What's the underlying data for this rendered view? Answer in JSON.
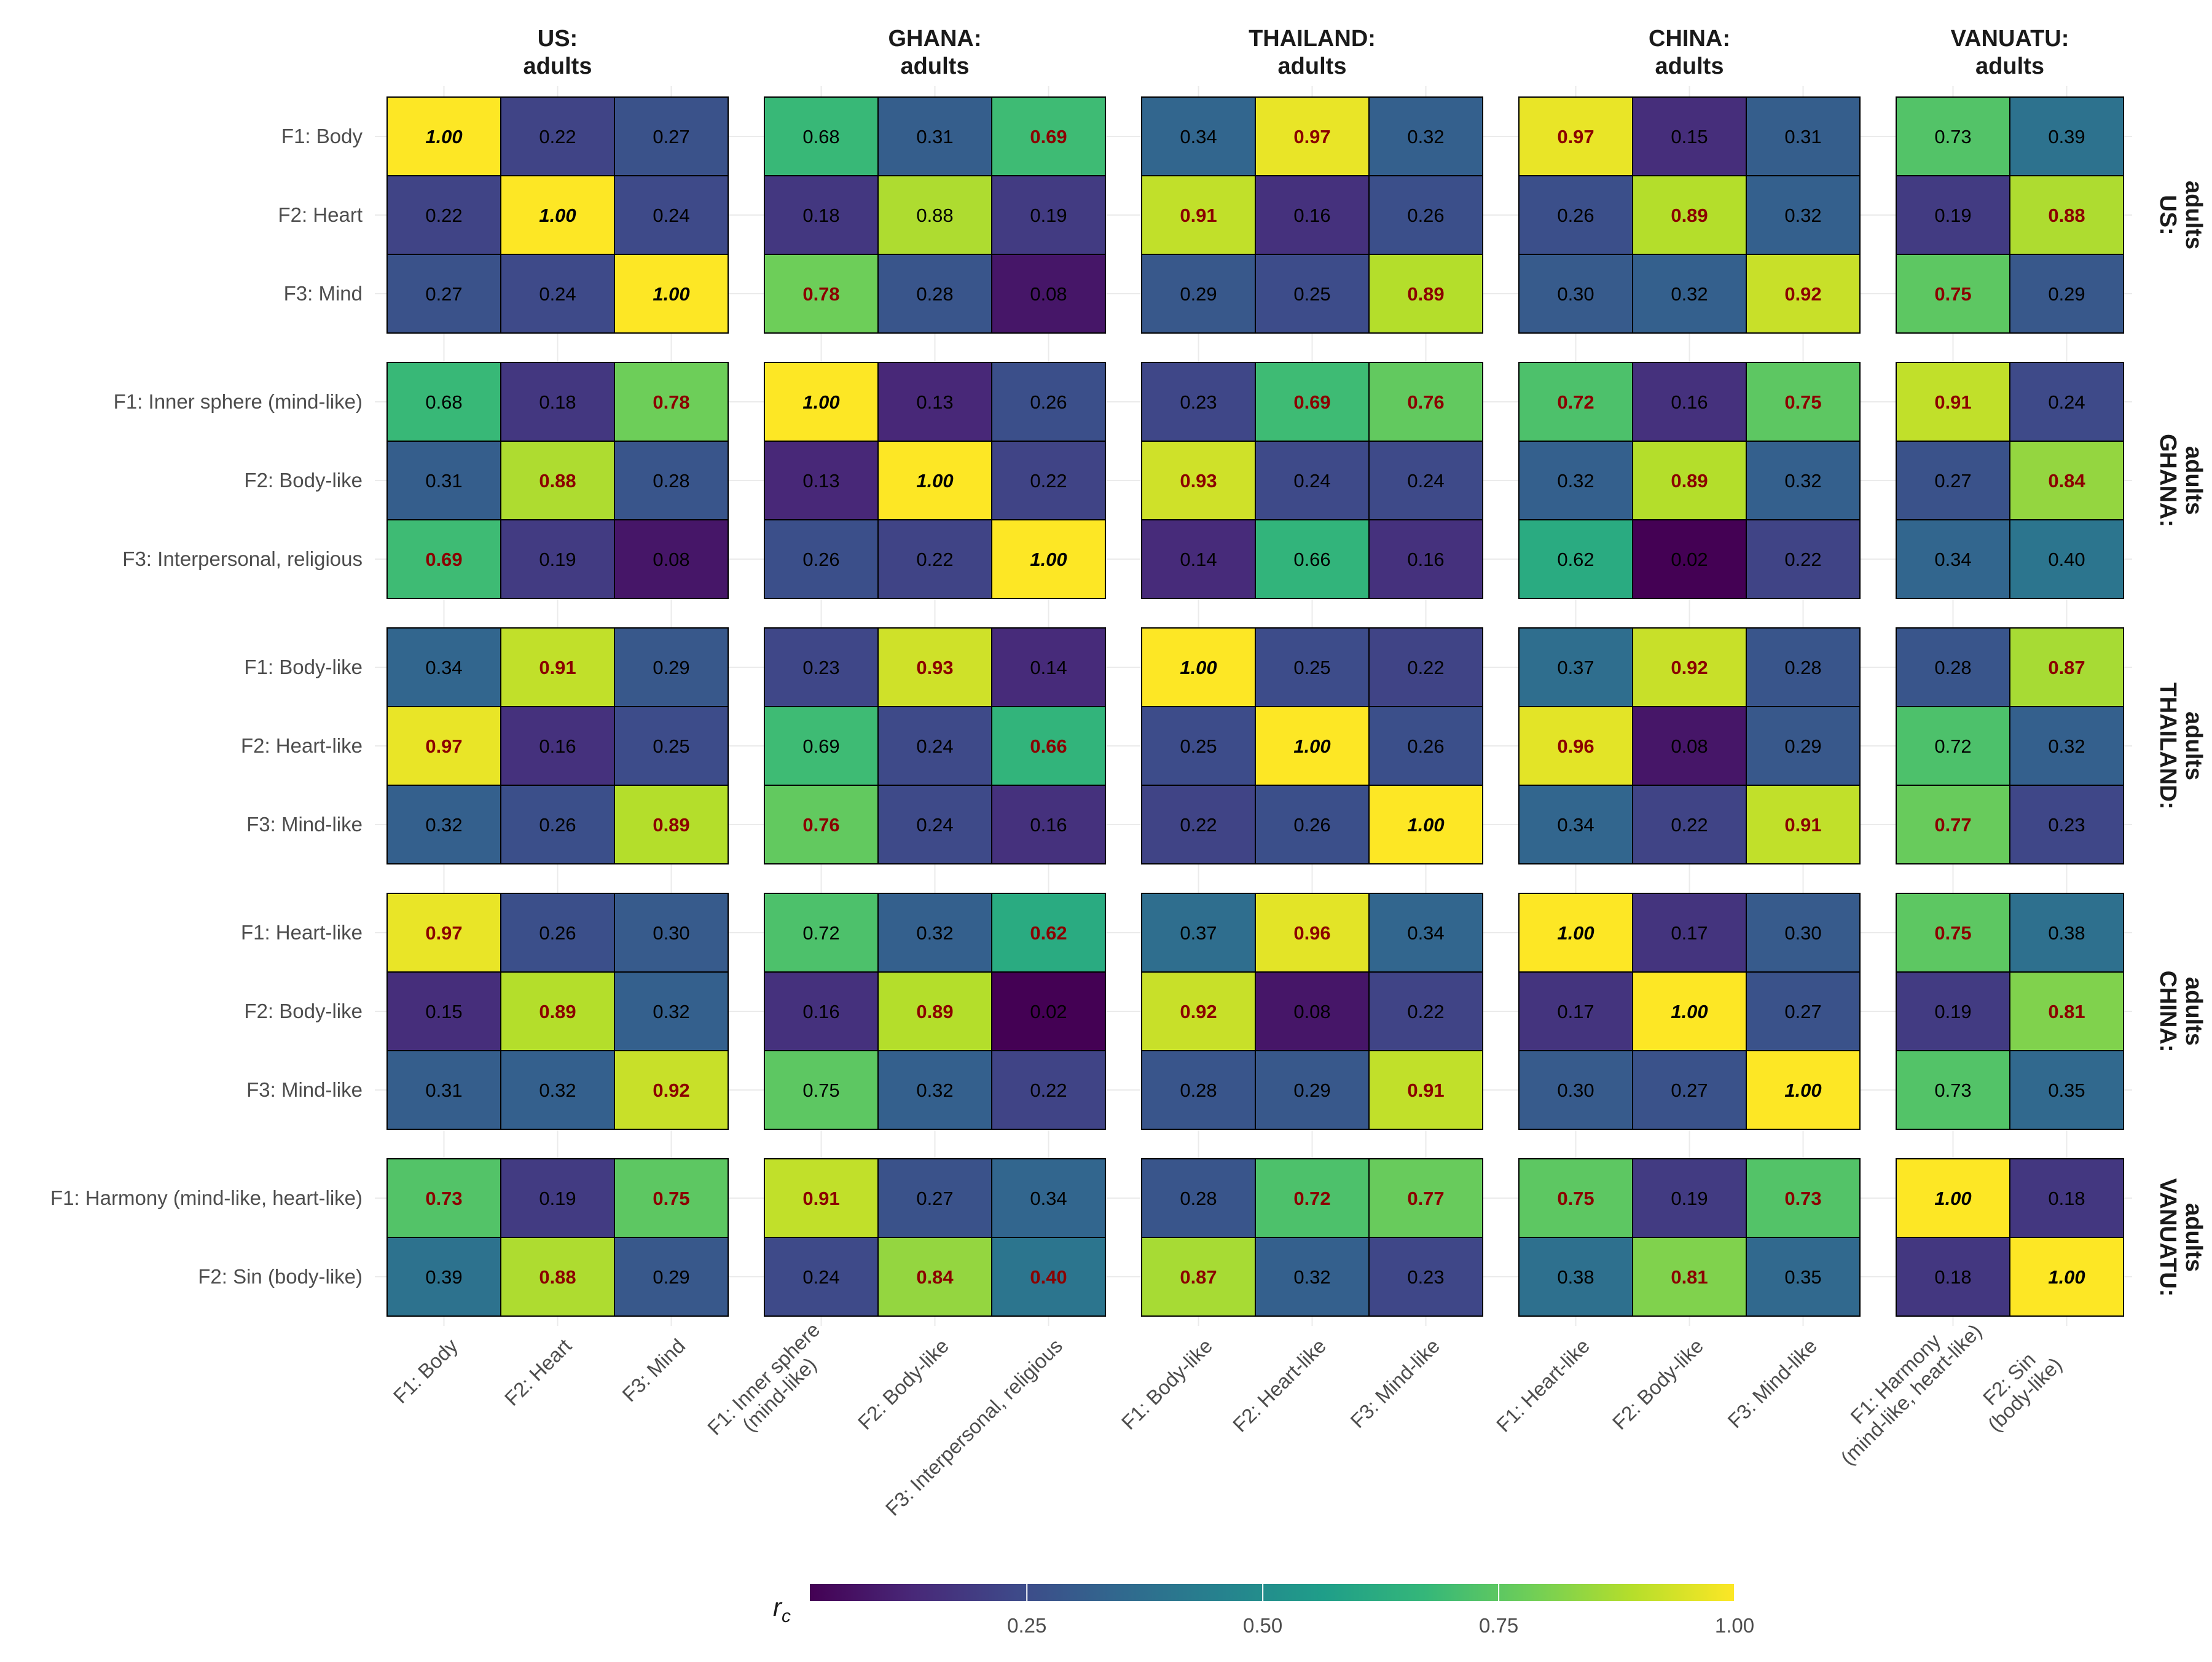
{
  "chart_data": {
    "type": "heatmap",
    "legend": {
      "title": "r",
      "title_subscript": "c",
      "ticks": [
        "0.25",
        "0.50",
        "0.75",
        "1.00"
      ],
      "tick_values": [
        0.25,
        0.5,
        0.75,
        1.0
      ],
      "range": [
        0.02,
        1.0
      ],
      "placement": "bottom"
    },
    "colorscale": [
      "#440154",
      "#482878",
      "#3e4989",
      "#31688e",
      "#26828e",
      "#1f9e89",
      "#35b779",
      "#6ece58",
      "#b5de2b",
      "#fde725"
    ],
    "highlight_colors": {
      "bold": "#8b0000",
      "diagonal": "#000000",
      "normal": "#000000"
    },
    "groups": [
      {
        "title_line1": "US:",
        "title_line2": "adults",
        "factors": [
          "F1: Body",
          "F2: Heart",
          "F3: Mind"
        ],
        "x_tick_labels": [
          [
            "F1: Body"
          ],
          [
            "F2: Heart"
          ],
          [
            "F3: Mind"
          ]
        ]
      },
      {
        "title_line1": "GHANA:",
        "title_line2": "adults",
        "factors": [
          "F1: Inner sphere (mind-like)",
          "F2: Body-like",
          "F3: Interpersonal, religious"
        ],
        "x_tick_labels": [
          [
            "F1: Inner sphere",
            "(mind-like)"
          ],
          [
            "F2: Body-like"
          ],
          [
            "F3: Interpersonal, religious"
          ]
        ]
      },
      {
        "title_line1": "THAILAND:",
        "title_line2": "adults",
        "factors": [
          "F1: Body-like",
          "F2: Heart-like",
          "F3: Mind-like"
        ],
        "x_tick_labels": [
          [
            "F1: Body-like"
          ],
          [
            "F2: Heart-like"
          ],
          [
            "F3: Mind-like"
          ]
        ]
      },
      {
        "title_line1": "CHINA:",
        "title_line2": "adults",
        "factors": [
          "F1: Heart-like",
          "F2: Body-like",
          "F3: Mind-like"
        ],
        "x_tick_labels": [
          [
            "F1: Heart-like"
          ],
          [
            "F2: Body-like"
          ],
          [
            "F3: Mind-like"
          ]
        ]
      },
      {
        "title_line1": "VANUATU:",
        "title_line2": "adults",
        "factors": [
          "F1: Harmony (mind-like, heart-like)",
          "F2: Sin (body-like)"
        ],
        "x_tick_labels": [
          [
            "F1: Harmony",
            "(mind-like, heart-like)"
          ],
          [
            "F2: Sin",
            "(body-like)"
          ]
        ]
      }
    ],
    "blocks": [
      [
        [
          [
            1.0,
            0.22,
            0.27
          ],
          [
            0.22,
            1.0,
            0.24
          ],
          [
            0.27,
            0.24,
            1.0
          ]
        ],
        [
          [
            0.68,
            0.31,
            0.69
          ],
          [
            0.18,
            0.88,
            0.19
          ],
          [
            0.78,
            0.28,
            0.08
          ]
        ],
        [
          [
            0.34,
            0.97,
            0.32
          ],
          [
            0.91,
            0.16,
            0.26
          ],
          [
            0.29,
            0.25,
            0.89
          ]
        ],
        [
          [
            0.97,
            0.15,
            0.31
          ],
          [
            0.26,
            0.89,
            0.32
          ],
          [
            0.3,
            0.32,
            0.92
          ]
        ],
        [
          [
            0.73,
            0.39
          ],
          [
            0.19,
            0.88
          ],
          [
            0.75,
            0.29
          ]
        ]
      ],
      [
        [
          [
            0.68,
            0.18,
            0.78
          ],
          [
            0.31,
            0.88,
            0.28
          ],
          [
            0.69,
            0.19,
            0.08
          ]
        ],
        [
          [
            1.0,
            0.13,
            0.26
          ],
          [
            0.13,
            1.0,
            0.22
          ],
          [
            0.26,
            0.22,
            1.0
          ]
        ],
        [
          [
            0.23,
            0.69,
            0.76
          ],
          [
            0.93,
            0.24,
            0.24
          ],
          [
            0.14,
            0.66,
            0.16
          ]
        ],
        [
          [
            0.72,
            0.16,
            0.75
          ],
          [
            0.32,
            0.89,
            0.32
          ],
          [
            0.62,
            0.02,
            0.22
          ]
        ],
        [
          [
            0.91,
            0.24
          ],
          [
            0.27,
            0.84
          ],
          [
            0.34,
            0.4
          ]
        ]
      ],
      [
        [
          [
            0.34,
            0.91,
            0.29
          ],
          [
            0.97,
            0.16,
            0.25
          ],
          [
            0.32,
            0.26,
            0.89
          ]
        ],
        [
          [
            0.23,
            0.93,
            0.14
          ],
          [
            0.69,
            0.24,
            0.66
          ],
          [
            0.76,
            0.24,
            0.16
          ]
        ],
        [
          [
            1.0,
            0.25,
            0.22
          ],
          [
            0.25,
            1.0,
            0.26
          ],
          [
            0.22,
            0.26,
            1.0
          ]
        ],
        [
          [
            0.37,
            0.92,
            0.28
          ],
          [
            0.96,
            0.08,
            0.29
          ],
          [
            0.34,
            0.22,
            0.91
          ]
        ],
        [
          [
            0.28,
            0.87
          ],
          [
            0.72,
            0.32
          ],
          [
            0.77,
            0.23
          ]
        ]
      ],
      [
        [
          [
            0.97,
            0.26,
            0.3
          ],
          [
            0.15,
            0.89,
            0.32
          ],
          [
            0.31,
            0.32,
            0.92
          ]
        ],
        [
          [
            0.72,
            0.32,
            0.62
          ],
          [
            0.16,
            0.89,
            0.02
          ],
          [
            0.75,
            0.32,
            0.22
          ]
        ],
        [
          [
            0.37,
            0.96,
            0.34
          ],
          [
            0.92,
            0.08,
            0.22
          ],
          [
            0.28,
            0.29,
            0.91
          ]
        ],
        [
          [
            1.0,
            0.17,
            0.3
          ],
          [
            0.17,
            1.0,
            0.27
          ],
          [
            0.3,
            0.27,
            1.0
          ]
        ],
        [
          [
            0.75,
            0.38
          ],
          [
            0.19,
            0.81
          ],
          [
            0.73,
            0.35
          ]
        ]
      ],
      [
        [
          [
            0.73,
            0.19,
            0.75
          ],
          [
            0.39,
            0.88,
            0.29
          ]
        ],
        [
          [
            0.91,
            0.27,
            0.34
          ],
          [
            0.24,
            0.84,
            0.4
          ]
        ],
        [
          [
            0.28,
            0.72,
            0.77
          ],
          [
            0.87,
            0.32,
            0.23
          ]
        ],
        [
          [
            0.75,
            0.19,
            0.73
          ],
          [
            0.38,
            0.81,
            0.35
          ]
        ],
        [
          [
            1.0,
            0.18
          ],
          [
            0.18,
            1.0
          ]
        ]
      ]
    ],
    "bold_cells": [
      [
        [],
        [
          [
            0,
            2
          ],
          [
            2,
            0
          ]
        ],
        [
          [
            0,
            1
          ],
          [
            1,
            0
          ],
          [
            2,
            2
          ]
        ],
        [
          [
            0,
            0
          ],
          [
            1,
            1
          ],
          [
            2,
            2
          ]
        ],
        [
          [
            1,
            1
          ],
          [
            2,
            0
          ]
        ]
      ],
      [
        [
          [
            0,
            2
          ],
          [
            1,
            1
          ],
          [
            2,
            0
          ]
        ],
        [],
        [
          [
            0,
            1
          ],
          [
            0,
            2
          ],
          [
            1,
            0
          ]
        ],
        [
          [
            0,
            0
          ],
          [
            0,
            2
          ],
          [
            1,
            1
          ]
        ],
        [
          [
            0,
            0
          ],
          [
            1,
            1
          ]
        ]
      ],
      [
        [
          [
            0,
            1
          ],
          [
            1,
            0
          ],
          [
            2,
            2
          ]
        ],
        [
          [
            0,
            1
          ],
          [
            1,
            2
          ],
          [
            2,
            0
          ]
        ],
        [],
        [
          [
            0,
            1
          ],
          [
            1,
            0
          ],
          [
            2,
            2
          ]
        ],
        [
          [
            0,
            1
          ],
          [
            2,
            0
          ]
        ]
      ],
      [
        [
          [
            0,
            0
          ],
          [
            1,
            1
          ],
          [
            2,
            2
          ]
        ],
        [
          [
            0,
            2
          ],
          [
            1,
            1
          ]
        ],
        [
          [
            0,
            1
          ],
          [
            1,
            0
          ],
          [
            2,
            2
          ]
        ],
        [],
        [
          [
            0,
            0
          ],
          [
            1,
            1
          ]
        ]
      ],
      [
        [
          [
            0,
            0
          ],
          [
            0,
            2
          ],
          [
            1,
            1
          ]
        ],
        [
          [
            0,
            0
          ],
          [
            1,
            1
          ],
          [
            1,
            2
          ]
        ],
        [
          [
            0,
            1
          ],
          [
            0,
            2
          ],
          [
            1,
            0
          ]
        ],
        [
          [
            0,
            0
          ],
          [
            0,
            2
          ],
          [
            1,
            1
          ]
        ],
        []
      ]
    ]
  }
}
